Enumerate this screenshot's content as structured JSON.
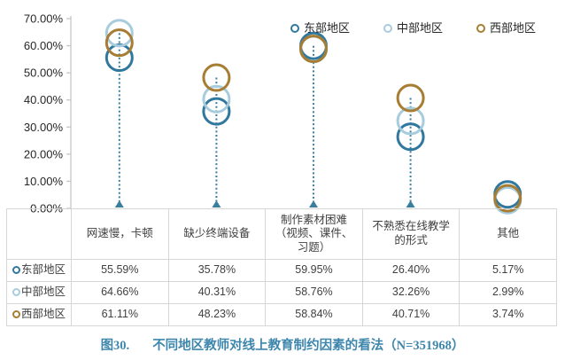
{
  "chart_data": {
    "type": "scatter",
    "title": "",
    "categories": [
      "网速慢，卡顿",
      "缺少终端设备",
      "制作素材困难（视频、课件、习题）",
      "不熟悉在线教学的形式",
      "其他"
    ],
    "series": [
      {
        "name": "东部地区",
        "color": "#31789e",
        "values": [
          55.59,
          35.78,
          59.95,
          26.4,
          5.17
        ]
      },
      {
        "name": "中部地区",
        "color": "#a7ccde",
        "values": [
          64.66,
          40.31,
          58.76,
          32.26,
          2.99
        ]
      },
      {
        "name": "西部地区",
        "color": "#a67d33",
        "values": [
          61.11,
          48.23,
          58.84,
          40.71,
          3.74
        ]
      }
    ],
    "ylim": [
      0,
      70
    ],
    "yticks": [
      "0.00%",
      "10.00%",
      "20.00%",
      "30.00%",
      "40.00%",
      "50.00%",
      "60.00%",
      "70.00%"
    ],
    "grid": "off",
    "legend_position": "top-right",
    "marker_style": "open-circle",
    "dropline_color": "#3a7e9e",
    "axis_color": "#c6c6c6",
    "tick_label_color": "#262626"
  },
  "table": {
    "corner_label": "",
    "col_headers": [
      "网速慢，卡顿",
      "缺少终端设备",
      "制作素材困难\n（视频、课件、\n习题）",
      "不熟悉在线教学\n的形式",
      "其他"
    ],
    "row_headers": [
      "东部地区",
      "中部地区",
      "西部地区"
    ],
    "rows": [
      [
        "55.59%",
        "35.78%",
        "59.95%",
        "26.40%",
        "5.17%"
      ],
      [
        "64.66%",
        "40.31%",
        "58.76%",
        "32.26%",
        "2.99%"
      ],
      [
        "61.11%",
        "48.23%",
        "58.84%",
        "40.71%",
        "3.74%"
      ]
    ]
  },
  "caption": {
    "label": "图30.",
    "text": "不同地区教师对线上教育制约因素的看法（N=351968）"
  }
}
